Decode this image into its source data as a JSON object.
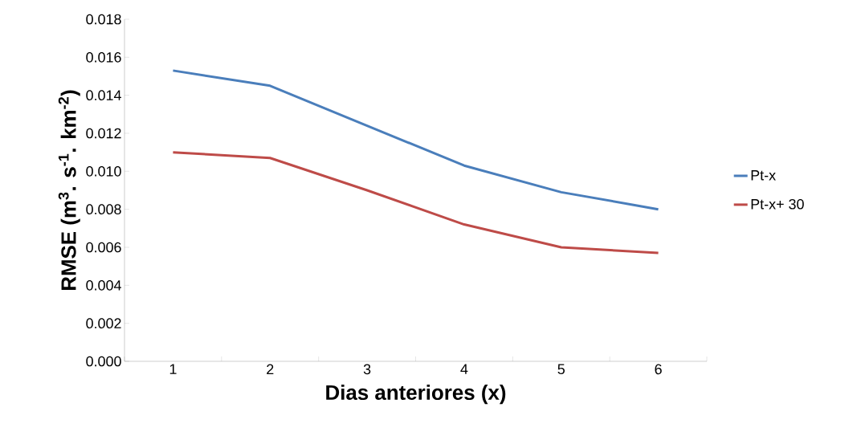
{
  "chart_data": {
    "type": "line",
    "xlabel": "Dias anteriores (x)",
    "ylabel": "RMSE (m$^{3}$. s$^{-1}$. km$^{-2}$)",
    "categories": [
      "1",
      "2",
      "3",
      "4",
      "5",
      "6"
    ],
    "series": [
      {
        "name": "Pt-x",
        "color": "#4a7ebb",
        "values": [
          0.0153,
          0.0145,
          0.0124,
          0.0103,
          0.0089,
          0.008
        ]
      },
      {
        "name": "Pt-x+ 30",
        "color": "#be4b48",
        "values": [
          0.011,
          0.0107,
          0.009,
          0.0072,
          0.006,
          0.0057
        ]
      }
    ],
    "ylim": [
      0,
      0.018
    ],
    "yticks": [
      {
        "value": 0,
        "label": "0.000"
      },
      {
        "value": 0.002,
        "label": "0.002"
      },
      {
        "value": 0.004,
        "label": "0.004"
      },
      {
        "value": 0.006,
        "label": "0.006"
      },
      {
        "value": 0.008,
        "label": "0.008"
      },
      {
        "value": 0.01,
        "label": "0.010"
      },
      {
        "value": 0.012,
        "label": "0.012"
      },
      {
        "value": 0.014,
        "label": "0.014"
      },
      {
        "value": 0.016,
        "label": "0.016"
      },
      {
        "value": 0.018,
        "label": "0.018"
      }
    ],
    "legend": "right",
    "grid": false,
    "marker": "none",
    "line_style": "solid"
  }
}
